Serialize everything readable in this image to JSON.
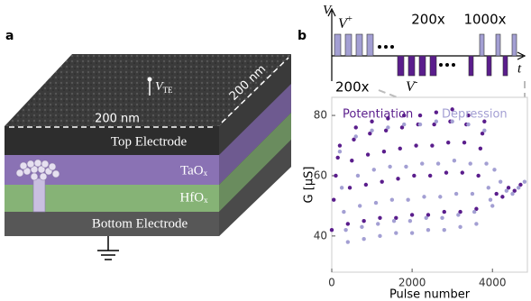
{
  "panel_a": {
    "label": "a",
    "top_label": {
      "symbol": "V",
      "subscript": "TE"
    },
    "width_label": "200 nm",
    "depth_label": "200 nm",
    "layers": [
      "Top Electrode",
      "TaOₓ",
      "HfOₓ",
      "Bottom Electrode"
    ]
  },
  "panel_b": {
    "label": "b",
    "waveform": {
      "v_axis": "V",
      "t_axis": "t",
      "v_plus": {
        "symbol": "V",
        "superscript": "+"
      },
      "v_minus": {
        "symbol": "V",
        "superscript": "-"
      },
      "repeat_1": "200x",
      "repeat_2": "1000x"
    },
    "zoom_label": "200x"
  },
  "chart_data": {
    "type": "scatter",
    "xlabel": "Pulse number",
    "ylabel": "G [μS]",
    "xlim": [
      0,
      4870
    ],
    "ylim": [
      28,
      86
    ],
    "xticks": [
      0,
      2000,
      4000
    ],
    "yticks": [
      40,
      60,
      80
    ],
    "series": [
      {
        "name": "Potentiation",
        "color": "#5a1d8c",
        "x": [
          0,
          50,
          100,
          150,
          200,
          400,
          450,
          500,
          550,
          600,
          800,
          850,
          900,
          950,
          1000,
          1200,
          1250,
          1300,
          1350,
          1400,
          1600,
          1650,
          1700,
          1750,
          1800,
          2000,
          2050,
          2100,
          2150,
          2200,
          2400,
          2450,
          2500,
          2550,
          2600,
          2800,
          2850,
          2900,
          2950,
          3000,
          3200,
          3250,
          3300,
          3350,
          3400,
          3600,
          3650,
          3700,
          3750,
          3800,
          4100,
          4250,
          4400,
          4550,
          4700
        ],
        "values": [
          42,
          52,
          60,
          66,
          70,
          44,
          56,
          65,
          72,
          76,
          45,
          57,
          67,
          74,
          78,
          46,
          58,
          68,
          75,
          79,
          46,
          59,
          69,
          76,
          80,
          47,
          60,
          70,
          77,
          80,
          47,
          60,
          70,
          77,
          81,
          48,
          61,
          71,
          78,
          82,
          48,
          61,
          71,
          77,
          80,
          49,
          60,
          69,
          74,
          78,
          54,
          53,
          56,
          55,
          57
        ]
      },
      {
        "name": "Depression",
        "color": "#a39fd3",
        "x": [
          200,
          250,
          300,
          350,
          400,
          600,
          650,
          700,
          750,
          800,
          1000,
          1050,
          1100,
          1150,
          1200,
          1400,
          1450,
          1500,
          1550,
          1600,
          1800,
          1850,
          1900,
          1950,
          2000,
          2200,
          2250,
          2300,
          2350,
          2400,
          2600,
          2650,
          2700,
          2750,
          2800,
          3000,
          3050,
          3100,
          3150,
          3200,
          3400,
          3450,
          3500,
          3550,
          3600,
          3800,
          3850,
          3900,
          3950,
          4000,
          4050,
          4200,
          4350,
          4500,
          4650,
          4800
        ],
        "values": [
          68,
          56,
          48,
          42,
          38,
          73,
          60,
          50,
          43,
          39,
          75,
          62,
          51,
          44,
          40,
          76,
          63,
          52,
          45,
          41,
          77,
          63,
          52,
          45,
          41,
          77,
          64,
          53,
          46,
          42,
          78,
          64,
          53,
          46,
          42,
          78,
          65,
          54,
          47,
          43,
          77,
          64,
          54,
          48,
          44,
          75,
          64,
          56,
          52,
          50,
          62,
          58,
          55,
          54,
          56,
          58
        ]
      }
    ]
  }
}
